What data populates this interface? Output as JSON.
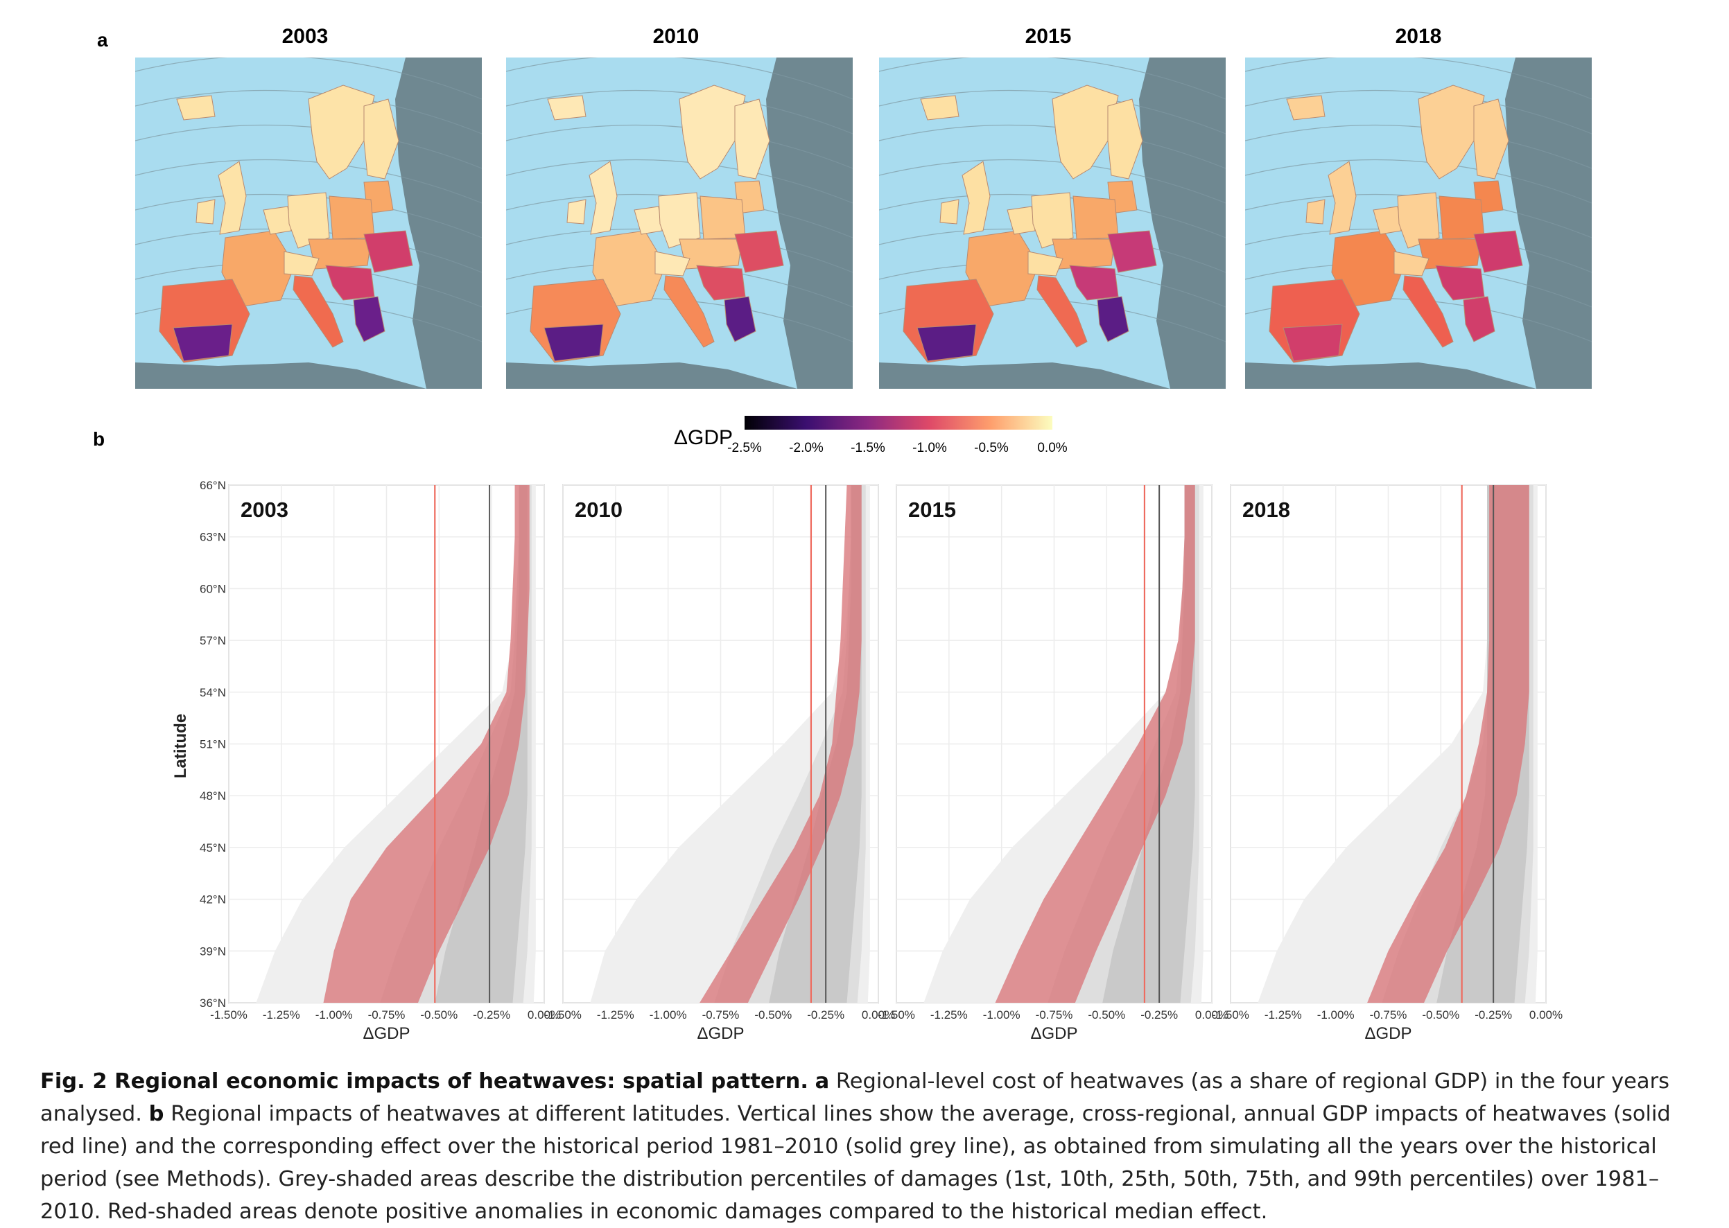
{
  "panel_a_label": "a",
  "panel_b_label": "b",
  "maps": [
    {
      "year": "2003",
      "hot": "#d13e6b",
      "mid": "#f06b4f",
      "warm": "#f8a868",
      "cool": "#fde3a8",
      "extra": "#6a1f8a"
    },
    {
      "year": "2010",
      "hot": "#dd4e63",
      "mid": "#f68a58",
      "warm": "#fbc486",
      "cool": "#fee8b5",
      "extra": "#5b1d85"
    },
    {
      "year": "2015",
      "hot": "#c63a77",
      "mid": "#ef6a52",
      "warm": "#f8a869",
      "cool": "#fde0a3",
      "extra": "#5b1d85"
    },
    {
      "year": "2018",
      "hot": "#cf3b6d",
      "mid": "#ee6050",
      "warm": "#f4874f",
      "cool": "#fcd095",
      "extra": "#d13e6b"
    }
  ],
  "colorbar": {
    "label": "ΔGDP",
    "ticks": [
      "-2.5%",
      "-2.0%",
      "-1.5%",
      "-1.0%",
      "-0.5%",
      "0.0%"
    ],
    "colors": [
      "#000004",
      "#3b0f70",
      "#8c2981",
      "#de4968",
      "#fe9f6d",
      "#fcfdbf"
    ]
  },
  "chart_data": [
    {
      "type": "area",
      "title": "2003",
      "xlabel": "ΔGDP",
      "ylabel": "Latitude",
      "xlim": [
        -1.5,
        0.0
      ],
      "ylim": [
        36,
        66
      ],
      "x_ticks": [
        "-1.50%",
        "-1.25%",
        "-1.00%",
        "-0.75%",
        "-0.50%",
        "-0.25%",
        "0.00%"
      ],
      "y_ticks": [
        "36°N",
        "39°N",
        "42°N",
        "45°N",
        "48°N",
        "51°N",
        "54°N",
        "57°N",
        "60°N",
        "63°N",
        "66°N"
      ],
      "latitude": [
        36,
        39,
        42,
        45,
        48,
        51,
        54,
        57,
        60,
        63,
        66
      ],
      "current_red_line": -0.52,
      "historical_grey_line": -0.26,
      "red_band_left": [
        -1.05,
        -1.0,
        -0.92,
        -0.75,
        -0.52,
        -0.3,
        -0.18,
        -0.16,
        -0.15,
        -0.14,
        -0.14
      ],
      "red_band_right": [
        -0.6,
        -0.5,
        -0.38,
        -0.26,
        -0.17,
        -0.12,
        -0.09,
        -0.08,
        -0.07,
        -0.07,
        -0.07
      ],
      "grey_bands": [
        {
          "percentiles": "1st-99th",
          "left": [
            -1.37,
            -1.28,
            -1.15,
            -0.95,
            -0.7,
            -0.45,
            -0.2,
            -0.15,
            -0.13,
            -0.12,
            -0.12
          ],
          "right": [
            -0.05,
            -0.04,
            -0.04,
            -0.04,
            -0.04,
            -0.04,
            -0.04,
            -0.04,
            -0.04,
            -0.04,
            -0.04
          ]
        },
        {
          "percentiles": "10th-90th",
          "left": [
            -0.78,
            -0.7,
            -0.6,
            -0.5,
            -0.38,
            -0.27,
            -0.16,
            -0.14,
            -0.13,
            -0.12,
            -0.12
          ],
          "right": [
            -0.1,
            -0.08,
            -0.07,
            -0.06,
            -0.06,
            -0.06,
            -0.06,
            -0.06,
            -0.06,
            -0.06,
            -0.06
          ]
        },
        {
          "percentiles": "25th-75th",
          "left": [
            -0.52,
            -0.47,
            -0.4,
            -0.33,
            -0.27,
            -0.2,
            -0.14,
            -0.13,
            -0.12,
            -0.12,
            -0.12
          ],
          "right": [
            -0.15,
            -0.13,
            -0.11,
            -0.09,
            -0.08,
            -0.08,
            -0.08,
            -0.08,
            -0.08,
            -0.08,
            -0.08
          ]
        }
      ]
    },
    {
      "type": "area",
      "title": "2010",
      "xlabel": "ΔGDP",
      "ylabel": "",
      "xlim": [
        -1.5,
        0.0
      ],
      "ylim": [
        36,
        66
      ],
      "x_ticks": [
        "-1.50%",
        "-1.25%",
        "-1.00%",
        "-0.75%",
        "-0.50%",
        "-0.25%",
        "0.00%"
      ],
      "y_ticks": [],
      "latitude": [
        36,
        39,
        42,
        45,
        48,
        51,
        54,
        57,
        60,
        63,
        66
      ],
      "current_red_line": -0.32,
      "historical_grey_line": -0.25,
      "red_band_left": [
        -0.85,
        -0.7,
        -0.55,
        -0.4,
        -0.28,
        -0.22,
        -0.2,
        -0.18,
        -0.17,
        -0.16,
        -0.15
      ],
      "red_band_right": [
        -0.62,
        -0.5,
        -0.38,
        -0.27,
        -0.18,
        -0.12,
        -0.09,
        -0.08,
        -0.08,
        -0.08,
        -0.08
      ],
      "grey_bands": [
        {
          "percentiles": "1st-99th",
          "left": [
            -1.37,
            -1.3,
            -1.15,
            -0.95,
            -0.7,
            -0.45,
            -0.22,
            -0.16,
            -0.14,
            -0.13,
            -0.13
          ],
          "right": [
            -0.05,
            -0.04,
            -0.04,
            -0.04,
            -0.04,
            -0.04,
            -0.04,
            -0.04,
            -0.04,
            -0.04,
            -0.04
          ]
        },
        {
          "percentiles": "10th-90th",
          "left": [
            -0.78,
            -0.7,
            -0.6,
            -0.5,
            -0.38,
            -0.27,
            -0.17,
            -0.15,
            -0.14,
            -0.13,
            -0.13
          ],
          "right": [
            -0.1,
            -0.08,
            -0.07,
            -0.06,
            -0.06,
            -0.06,
            -0.06,
            -0.06,
            -0.06,
            -0.06,
            -0.06
          ]
        },
        {
          "percentiles": "25th-75th",
          "left": [
            -0.52,
            -0.47,
            -0.4,
            -0.33,
            -0.27,
            -0.2,
            -0.15,
            -0.14,
            -0.13,
            -0.13,
            -0.13
          ],
          "right": [
            -0.15,
            -0.13,
            -0.11,
            -0.09,
            -0.08,
            -0.08,
            -0.08,
            -0.08,
            -0.08,
            -0.08,
            -0.08
          ]
        }
      ]
    },
    {
      "type": "area",
      "title": "2015",
      "xlabel": "ΔGDP",
      "ylabel": "",
      "xlim": [
        -1.5,
        0.0
      ],
      "ylim": [
        36,
        66
      ],
      "x_ticks": [
        "-1.50%",
        "-1.25%",
        "-1.00%",
        "-0.75%",
        "-0.50%",
        "-0.25%",
        "0.00%"
      ],
      "y_ticks": [],
      "latitude": [
        36,
        39,
        42,
        45,
        48,
        51,
        54,
        57,
        60,
        63,
        66
      ],
      "current_red_line": -0.32,
      "historical_grey_line": -0.25,
      "red_band_left": [
        -1.03,
        -0.92,
        -0.8,
        -0.65,
        -0.5,
        -0.35,
        -0.22,
        -0.16,
        -0.14,
        -0.13,
        -0.13
      ],
      "red_band_right": [
        -0.65,
        -0.55,
        -0.44,
        -0.33,
        -0.22,
        -0.14,
        -0.1,
        -0.08,
        -0.08,
        -0.08,
        -0.08
      ],
      "grey_bands": [
        {
          "percentiles": "1st-99th",
          "left": [
            -1.37,
            -1.28,
            -1.15,
            -0.95,
            -0.7,
            -0.45,
            -0.22,
            -0.16,
            -0.14,
            -0.13,
            -0.13
          ],
          "right": [
            -0.05,
            -0.04,
            -0.04,
            -0.04,
            -0.04,
            -0.04,
            -0.04,
            -0.04,
            -0.04,
            -0.04,
            -0.04
          ]
        },
        {
          "percentiles": "10th-90th",
          "left": [
            -0.78,
            -0.7,
            -0.6,
            -0.5,
            -0.38,
            -0.27,
            -0.17,
            -0.15,
            -0.14,
            -0.13,
            -0.13
          ],
          "right": [
            -0.1,
            -0.08,
            -0.07,
            -0.06,
            -0.06,
            -0.06,
            -0.06,
            -0.06,
            -0.06,
            -0.06,
            -0.06
          ]
        },
        {
          "percentiles": "25th-75th",
          "left": [
            -0.52,
            -0.47,
            -0.4,
            -0.33,
            -0.27,
            -0.2,
            -0.15,
            -0.14,
            -0.13,
            -0.13,
            -0.13
          ],
          "right": [
            -0.15,
            -0.13,
            -0.11,
            -0.09,
            -0.08,
            -0.08,
            -0.08,
            -0.08,
            -0.08,
            -0.08,
            -0.08
          ]
        }
      ]
    },
    {
      "type": "area",
      "title": "2018",
      "xlabel": "ΔGDP",
      "ylabel": "",
      "xlim": [
        -1.5,
        0.0
      ],
      "ylim": [
        36,
        66
      ],
      "x_ticks": [
        "-1.50%",
        "-1.25%",
        "-1.00%",
        "-0.75%",
        "-0.50%",
        "-0.25%",
        "0.00%"
      ],
      "y_ticks": [],
      "latitude": [
        36,
        39,
        42,
        45,
        48,
        51,
        54,
        57,
        60,
        63,
        66
      ],
      "current_red_line": -0.4,
      "historical_grey_line": -0.25,
      "red_band_left": [
        -0.85,
        -0.75,
        -0.62,
        -0.48,
        -0.38,
        -0.32,
        -0.28,
        -0.27,
        -0.27,
        -0.27,
        -0.27
      ],
      "red_band_right": [
        -0.58,
        -0.47,
        -0.34,
        -0.22,
        -0.14,
        -0.1,
        -0.08,
        -0.08,
        -0.08,
        -0.08,
        -0.08
      ],
      "grey_bands": [
        {
          "percentiles": "1st-99th",
          "left": [
            -1.37,
            -1.28,
            -1.15,
            -0.95,
            -0.7,
            -0.45,
            -0.3,
            -0.28,
            -0.28,
            -0.28,
            -0.28
          ],
          "right": [
            -0.05,
            -0.04,
            -0.04,
            -0.04,
            -0.04,
            -0.04,
            -0.04,
            -0.04,
            -0.04,
            -0.04,
            -0.04
          ]
        },
        {
          "percentiles": "10th-90th",
          "left": [
            -0.78,
            -0.7,
            -0.6,
            -0.5,
            -0.38,
            -0.3,
            -0.28,
            -0.28,
            -0.28,
            -0.28,
            -0.28
          ],
          "right": [
            -0.1,
            -0.08,
            -0.07,
            -0.06,
            -0.06,
            -0.06,
            -0.06,
            -0.06,
            -0.06,
            -0.06,
            -0.06
          ]
        },
        {
          "percentiles": "25th-75th",
          "left": [
            -0.52,
            -0.47,
            -0.4,
            -0.33,
            -0.29,
            -0.28,
            -0.28,
            -0.28,
            -0.28,
            -0.28,
            -0.28
          ],
          "right": [
            -0.15,
            -0.13,
            -0.11,
            -0.09,
            -0.08,
            -0.08,
            -0.08,
            -0.08,
            -0.08,
            -0.08,
            -0.08
          ]
        }
      ]
    }
  ],
  "caption": {
    "bold_lead": "Fig. 2 Regional economic impacts of heatwaves: spatial pattern.",
    "a_label": "a",
    "a_text": "Regional-level cost of heatwaves (as a share of regional GDP) in the four years analysed.",
    "b_label": "b",
    "b_text": "Regional impacts of heatwaves at different latitudes. Vertical lines show the average, cross-regional, annual GDP impacts of heatwaves (solid red line) and the corresponding effect over the historical period 1981–2010 (solid grey line), as obtained from simulating all the years over the historical period (see Methods). Grey-shaded areas describe the distribution percentiles of damages (1st, 10th, 25th, 50th, 75th, and 99th percentiles) over 1981–2010. Red-shaded areas denote positive anomalies in economic damages compared to the historical median effect."
  }
}
